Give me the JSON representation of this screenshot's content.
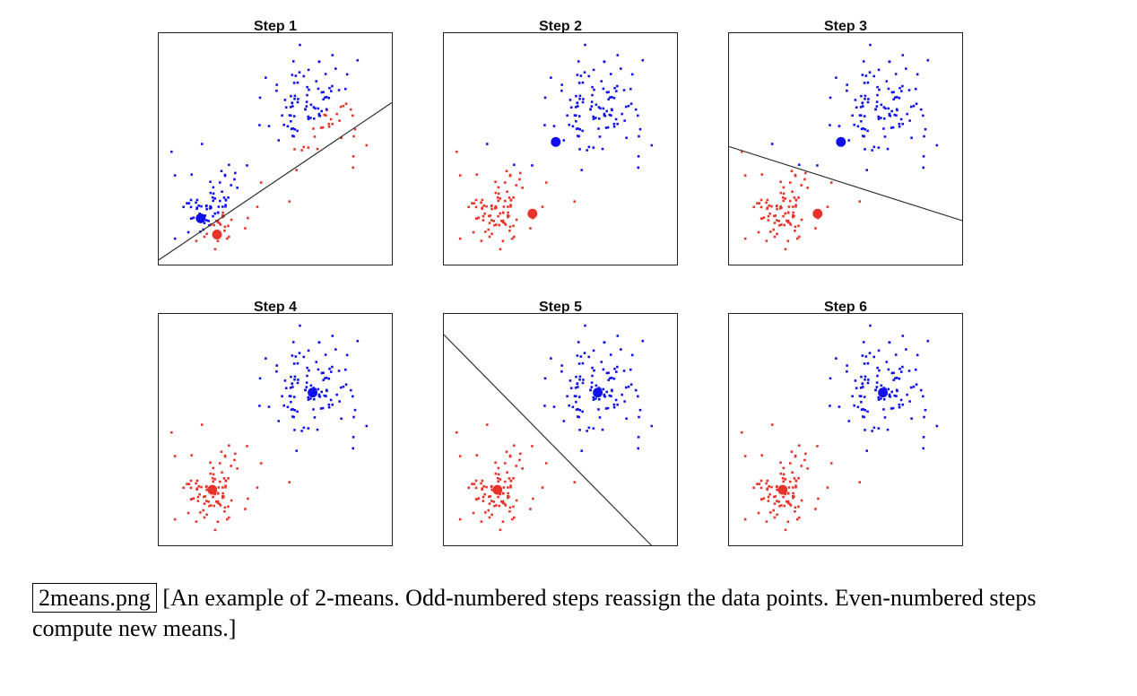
{
  "chart_data": [
    {
      "type": "scatter",
      "title": "Step 1",
      "centroids": [
        {
          "x": 0.18,
          "y": 0.2
        },
        {
          "x": 0.25,
          "y": 0.13
        }
      ],
      "boundary": [
        [
          0,
          0.02
        ],
        [
          1,
          0.7
        ]
      ]
    },
    {
      "type": "scatter",
      "title": "Step 2",
      "centroids": [
        {
          "x": 0.48,
          "y": 0.53
        },
        {
          "x": 0.38,
          "y": 0.22
        }
      ],
      "boundary": null
    },
    {
      "type": "scatter",
      "title": "Step 3",
      "centroids": [
        {
          "x": 0.48,
          "y": 0.53
        },
        {
          "x": 0.38,
          "y": 0.22
        }
      ],
      "boundary": [
        [
          0,
          0.51
        ],
        [
          1,
          0.19
        ]
      ]
    },
    {
      "type": "scatter",
      "title": "Step 4",
      "centroids": [
        {
          "x": 0.66,
          "y": 0.66
        },
        {
          "x": 0.23,
          "y": 0.24
        }
      ],
      "boundary": null
    },
    {
      "type": "scatter",
      "title": "Step 5",
      "centroids": [
        {
          "x": 0.66,
          "y": 0.66
        },
        {
          "x": 0.23,
          "y": 0.24
        }
      ],
      "boundary": [
        [
          0,
          0.91
        ],
        [
          0.89,
          0
        ]
      ]
    },
    {
      "type": "scatter",
      "title": "Step 6",
      "centroids": [
        {
          "x": 0.66,
          "y": 0.66
        },
        {
          "x": 0.23,
          "y": 0.24
        }
      ],
      "boundary": null
    }
  ],
  "colors": {
    "cluster_blue": "#1010ee",
    "cluster_red": "#e8332a",
    "boundary": "#333333"
  },
  "caption": {
    "filename": "2means.png",
    "text": "[An example of 2-means.  Odd-numbered steps reassign the data points. Even-numbered steps compute new means.]"
  }
}
